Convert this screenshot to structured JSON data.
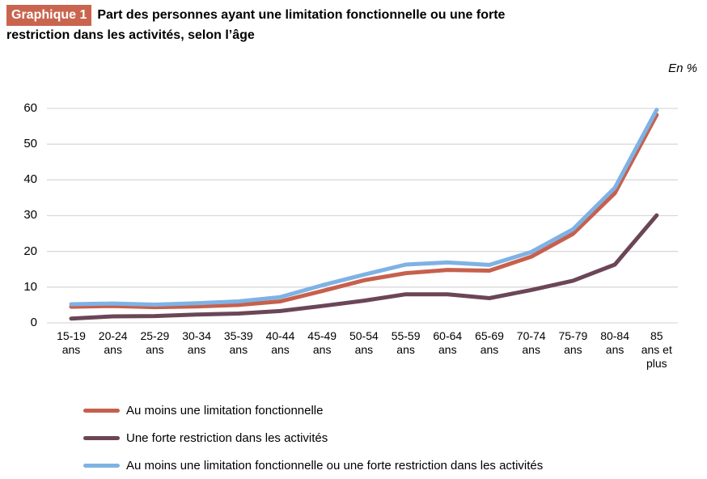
{
  "header": {
    "badge": "Graphique 1",
    "title_lines": [
      "Part des personnes ayant une limitation fonctionnelle ou une forte",
      "restriction dans les activités, selon l’âge"
    ],
    "unit_label": "En %"
  },
  "chart_data": {
    "type": "line",
    "title": "Part des personnes ayant une limitation fonctionnelle ou une forte restriction dans les activités, selon l’âge",
    "unit": "En %",
    "xlabel": "",
    "ylabel": "",
    "ylim": [
      0,
      60
    ],
    "y_ticks": [
      0,
      10,
      20,
      30,
      40,
      50,
      60
    ],
    "grid": "horizontal",
    "legend_position": "bottom-left",
    "categories": [
      [
        "15-19",
        "ans"
      ],
      [
        "20-24",
        "ans"
      ],
      [
        "25-29",
        "ans"
      ],
      [
        "30-34",
        "ans"
      ],
      [
        "35-39",
        "ans"
      ],
      [
        "40-44",
        "ans"
      ],
      [
        "45-49",
        "ans"
      ],
      [
        "50-54",
        "ans"
      ],
      [
        "55-59",
        "ans"
      ],
      [
        "60-64",
        "ans"
      ],
      [
        "65-69",
        "ans"
      ],
      [
        "70-74",
        "ans"
      ],
      [
        "75-79",
        "ans"
      ],
      [
        "80-84",
        "ans"
      ],
      [
        "85",
        "ans et",
        "plus"
      ]
    ],
    "series": [
      {
        "name": "Au moins une limitation fonctionnelle",
        "color": "#C6604D",
        "values": [
          4.5,
          4.7,
          4.4,
          4.6,
          5.0,
          6.0,
          8.9,
          11.9,
          13.9,
          14.8,
          14.6,
          18.5,
          24.9,
          36.3,
          58.2
        ]
      },
      {
        "name": "Une forte restriction dans les activités",
        "color": "#6B4656",
        "values": [
          1.2,
          1.8,
          1.9,
          2.3,
          2.6,
          3.3,
          4.7,
          6.2,
          8.0,
          8.0,
          6.9,
          9.2,
          11.8,
          16.3,
          30.1
        ]
      },
      {
        "name": "Au moins une limitation fonctionnelle ou une forte restriction dans les activités",
        "color": "#7EB2E4",
        "values": [
          5.2,
          5.4,
          5.1,
          5.5,
          6.0,
          7.2,
          10.5,
          13.5,
          16.3,
          16.9,
          16.2,
          19.8,
          26.2,
          37.8,
          59.6
        ]
      }
    ],
    "colors": {
      "grid": "#D9D9D9",
      "text": "#000000",
      "badge_bg": "#C9654F",
      "badge_text": "#FFFFFF"
    }
  }
}
